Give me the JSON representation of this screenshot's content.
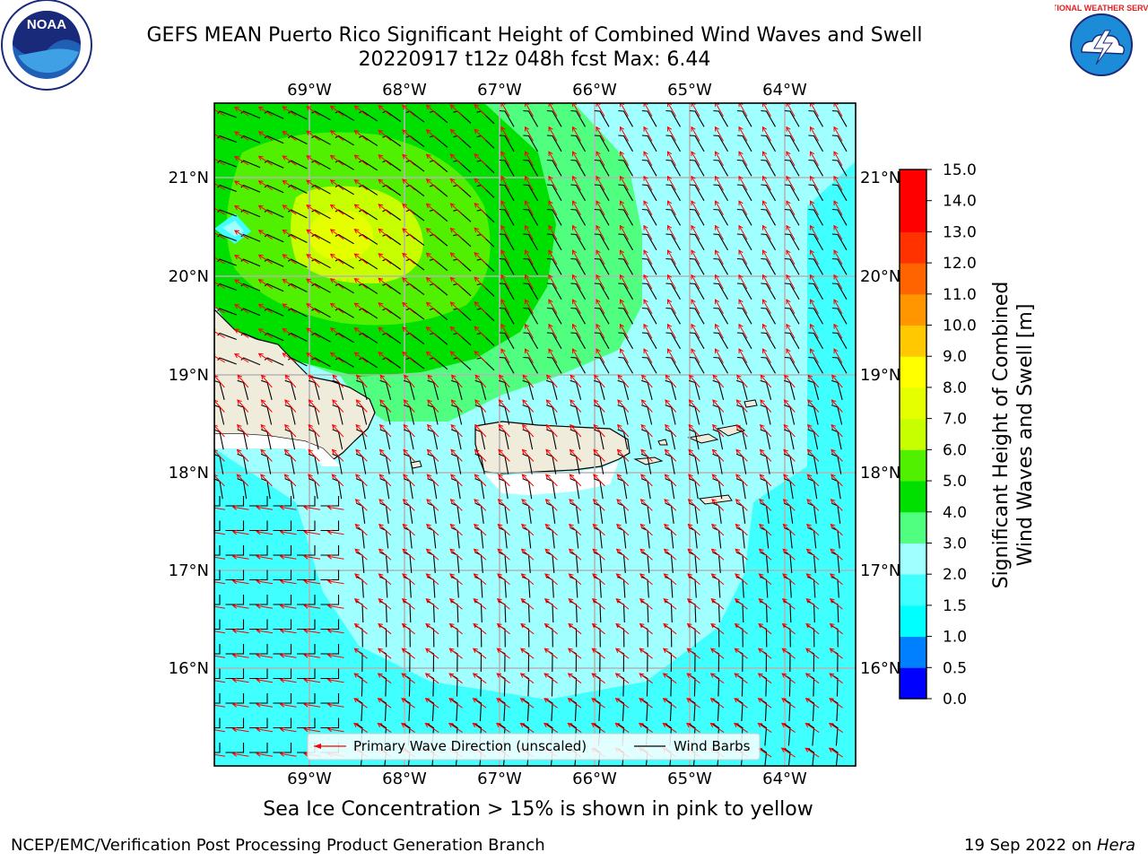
{
  "title": {
    "line1": "GEFS MEAN Puerto Rico Significant Height of Combined Wind Waves and Swell",
    "line2": "20220917 t12z 048h fcst   Max: 6.44"
  },
  "map": {
    "lon_labels": [
      "69°W",
      "68°W",
      "67°W",
      "66°W",
      "65°W",
      "64°W"
    ],
    "lat_labels": [
      "21°N",
      "20°N",
      "19°N",
      "18°N",
      "17°N",
      "16°N"
    ],
    "legend": {
      "wave_direction": "Primary Wave Direction (unscaled)",
      "wind_barbs": "Wind Barbs"
    }
  },
  "colorbar": {
    "label_line1": "Significant Height of Combined",
    "label_line2": "Wind Waves and Swell [m]",
    "ticks": [
      "0.0",
      "0.5",
      "1.0",
      "1.5",
      "2.0",
      "3.0",
      "4.0",
      "5.0",
      "6.0",
      "7.0",
      "8.0",
      "9.0",
      "10.0",
      "11.0",
      "12.0",
      "13.0",
      "14.0",
      "15.0"
    ],
    "colors": [
      "#0000ff",
      "#0080ff",
      "#00ffff",
      "#40ffff",
      "#a0ffff",
      "#50ff80",
      "#00e000",
      "#50f000",
      "#c8ff00",
      "#e6ff00",
      "#ffff00",
      "#ffc800",
      "#ff9600",
      "#ff6400",
      "#ff3200",
      "#ff0000",
      "#ff0000"
    ]
  },
  "sea_ice_note": "Sea Ice Concentration > 15% is shown in pink to yellow",
  "footer": {
    "left": "NCEP/EMC/Verification Post Processing Product Generation Branch",
    "right_prefix": "19 Sep 2022 on ",
    "right_host": "Hera"
  },
  "logos": {
    "noaa_text": "NOAA",
    "nws_text": "NATIONAL WEATHER SERVICE"
  }
}
